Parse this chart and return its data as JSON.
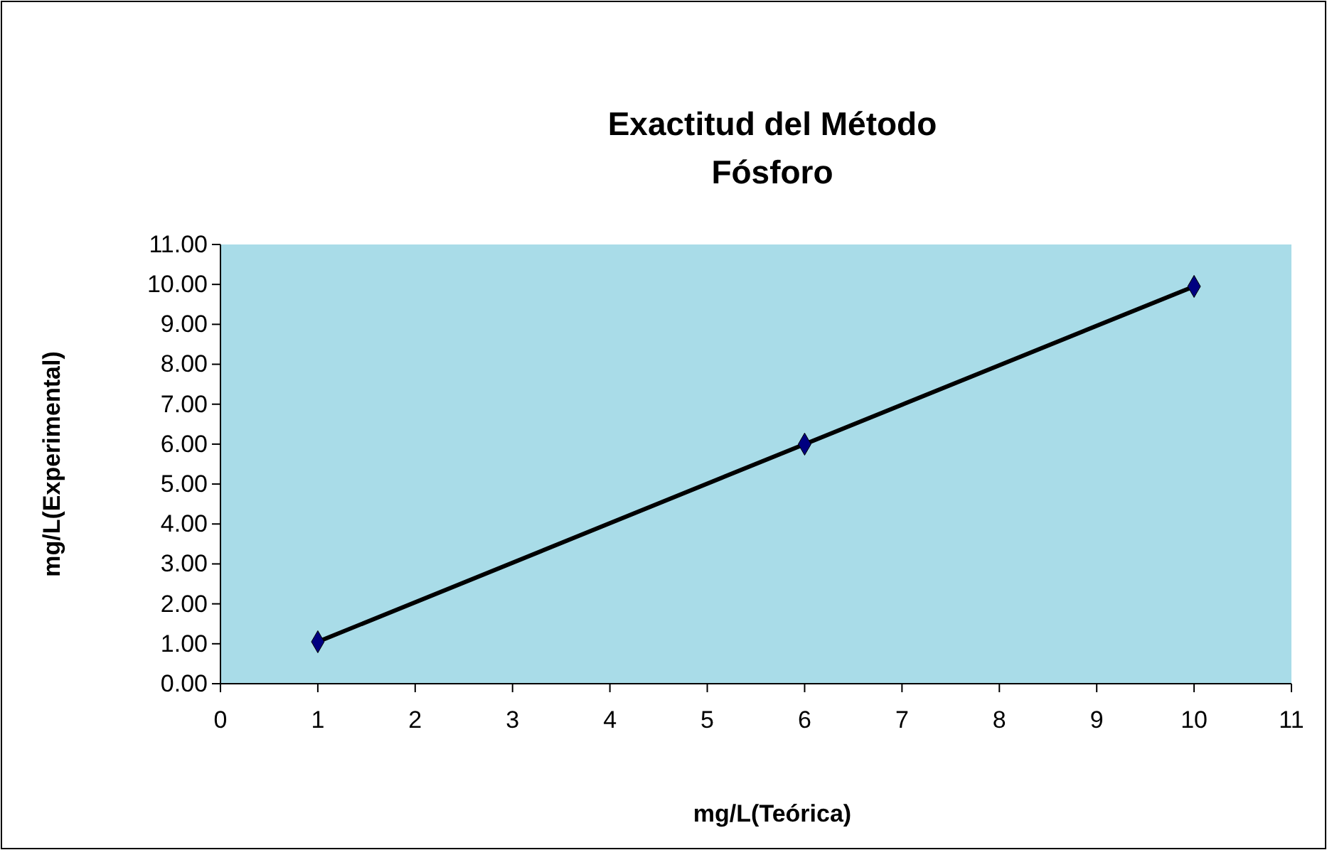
{
  "chart_data": {
    "type": "line",
    "title": "Exactitud del Método\nFósforo",
    "xlabel": "mg/L(Teórica)",
    "ylabel": "mg/L(Experimental)",
    "x": [
      1,
      6,
      10
    ],
    "series": [
      {
        "color": "#000000",
        "values": [
          1.05,
          6.0,
          9.95
        ]
      }
    ],
    "marker": "diamond",
    "xlim": [
      0,
      11
    ],
    "xticks": [
      0,
      1,
      2,
      3,
      4,
      5,
      6,
      7,
      8,
      9,
      10,
      11
    ],
    "ylim": [
      0,
      11
    ],
    "yticks": [
      {
        "value": 0,
        "label": "0.00"
      },
      {
        "value": 1,
        "label": "1.00"
      },
      {
        "value": 2,
        "label": "2.00"
      },
      {
        "value": 3,
        "label": "3.00"
      },
      {
        "value": 4,
        "label": "4.00"
      },
      {
        "value": 5,
        "label": "5.00"
      },
      {
        "value": 6,
        "label": "6.00"
      },
      {
        "value": 7,
        "label": "7.00"
      },
      {
        "value": 8,
        "label": "8.00"
      },
      {
        "value": 9,
        "label": "9.00"
      },
      {
        "value": 10,
        "label": "10.00"
      },
      {
        "value": 11,
        "label": "11.00"
      }
    ],
    "grid": false
  }
}
